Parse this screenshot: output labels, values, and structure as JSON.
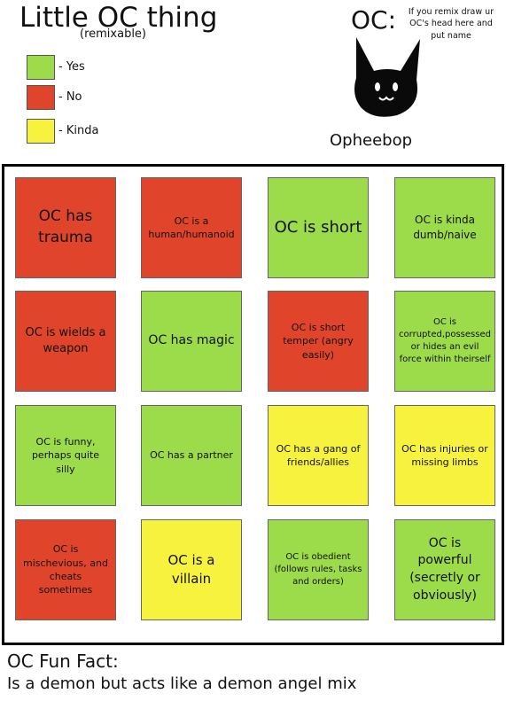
{
  "header": {
    "title": "Little OC thing",
    "subtitle": "(remixable)"
  },
  "legend": [
    {
      "label": "- Yes",
      "color": "#9cdb4a"
    },
    {
      "label": "- No",
      "color": "#e0452c"
    },
    {
      "label": "- Kinda",
      "color": "#f6f23e"
    }
  ],
  "oc": {
    "label": "OC:",
    "note": "If you remix draw ur OC's head here and put name",
    "name": "Opheebop"
  },
  "cells": [
    {
      "text": "OC has trauma",
      "color": "#e0452c"
    },
    {
      "text": "OC is a human/humanoid",
      "color": "#e0452c"
    },
    {
      "text": "OC is short",
      "color": "#9cdb4a"
    },
    {
      "text": "OC is kinda dumb/naive",
      "color": "#9cdb4a"
    },
    {
      "text": "OC is wields a weapon",
      "color": "#e0452c"
    },
    {
      "text": "OC has magic",
      "color": "#9cdb4a"
    },
    {
      "text": "OC is short temper (angry easily)",
      "color": "#e0452c"
    },
    {
      "text": "OC is corrupted,possessed or hides an evil force within theirself",
      "color": "#9cdb4a"
    },
    {
      "text": "OC is funny, perhaps quite silly",
      "color": "#9cdb4a"
    },
    {
      "text": "OC has a partner",
      "color": "#9cdb4a"
    },
    {
      "text": "OC has a gang of friends/allies",
      "color": "#f6f23e"
    },
    {
      "text": "OC has injuries or missing limbs",
      "color": "#f6f23e"
    },
    {
      "text": "OC is mischevious, and cheats sometimes",
      "color": "#e0452c"
    },
    {
      "text": "OC is a villain",
      "color": "#f6f23e"
    },
    {
      "text": "OC is obedient (follows rules, tasks and orders)",
      "color": "#9cdb4a"
    },
    {
      "text": "OC is powerful (secretly or obviously)",
      "color": "#9cdb4a"
    }
  ],
  "fun_fact": {
    "heading": "OC Fun Fact:",
    "text": "Is a demon but acts like a demon angel mix"
  }
}
